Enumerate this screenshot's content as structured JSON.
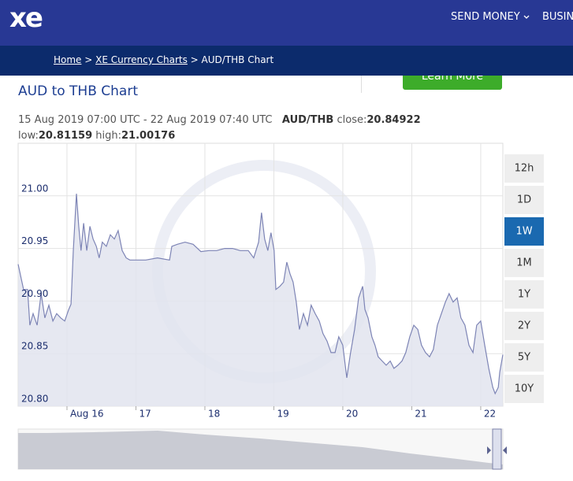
{
  "header": {
    "logo": "xe",
    "nav": [
      "SEND MONEY",
      "BUSIN"
    ]
  },
  "breadcrumb": [
    "Home",
    "XE Currency Charts",
    "AUD/THB Chart"
  ],
  "button": "Learn More",
  "periods": [
    "12h",
    "1D",
    "1W",
    "1M",
    "1Y",
    "2Y",
    "5Y",
    "10Y"
  ],
  "active_period": 2,
  "chart_data": {
    "type": "line",
    "title": "AUD to THB Chart",
    "range": "15 Aug 2019 07:00 UTC - 22 Aug 2019 07:40 UTC",
    "pair": "AUD/THB",
    "stats": [
      {
        "label": "close:",
        "value": 20.84922
      },
      {
        "label": "low:",
        "value": 20.81159
      },
      {
        "label": "high:",
        "value": 21.00176
      }
    ],
    "color": "#7d84b5",
    "fill": "#e2e4ef",
    "grid": true,
    "xlim": [
      0,
      168.7
    ],
    "xticks": [
      {
        "value": 17,
        "label": "Aug 16"
      },
      {
        "value": 41,
        "label": "17"
      },
      {
        "value": 65,
        "label": "18"
      },
      {
        "value": 89,
        "label": "19"
      },
      {
        "value": 113,
        "label": "20"
      },
      {
        "value": 137,
        "label": "21"
      },
      {
        "value": 161,
        "label": "22"
      }
    ],
    "ylim": [
      20.8,
      21.05
    ],
    "yticks": [
      {
        "value": 20.8,
        "label": "20.80"
      },
      20.85,
      {
        "value": 20.9,
        "label": "20.90"
      },
      20.95,
      {
        "value": 21,
        "label": "21.00"
      }
    ],
    "x": [
      0,
      1.9,
      3.3,
      4.1,
      5.2,
      6.6,
      8.0,
      9.3,
      10.7,
      12.1,
      13.4,
      14.8,
      16.2,
      17.6,
      18.4,
      19.2,
      20.3,
      21.1,
      21.9,
      22.8,
      23.9,
      25.0,
      26.1,
      27.2,
      28.2,
      29.3,
      30.7,
      32.1,
      33.5,
      34.8,
      36.2,
      37.6,
      38.9,
      41.7,
      44.4,
      48.5,
      52.7,
      53.5,
      55.4,
      58.1,
      60.9,
      63.6,
      66.4,
      69.1,
      71.9,
      74.6,
      77.3,
      80.1,
      82.0,
      83.7,
      84.7,
      85.8,
      86.9,
      88.0,
      89.1,
      89.7,
      91.1,
      92.4,
      93.5,
      94.6,
      95.7,
      96.8,
      97.9,
      99.3,
      100.7,
      102.0,
      103.4,
      104.8,
      106.1,
      107.5,
      108.9,
      110.3,
      111.6,
      113.0,
      114.4,
      115.7,
      117.1,
      118.5,
      119.9,
      120.7,
      121.8,
      123.1,
      124.2,
      125.3,
      126.7,
      128.1,
      129.5,
      130.8,
      132.2,
      133.6,
      134.9,
      136.3,
      137.7,
      139.1,
      140.4,
      141.8,
      143.2,
      144.5,
      145.9,
      147.3,
      148.7,
      150.0,
      151.4,
      152.8,
      154.1,
      155.5,
      156.9,
      158.3,
      159.6,
      161.0,
      162.4,
      163.8,
      165.2,
      166.0,
      167.1,
      167.6,
      168.7
    ],
    "values": [
      20.935,
      20.911,
      20.911,
      20.877,
      20.888,
      20.877,
      20.907,
      20.884,
      20.896,
      20.881,
      20.888,
      20.884,
      20.881,
      20.892,
      20.897,
      20.948,
      21.002,
      20.971,
      20.948,
      20.974,
      20.948,
      20.971,
      20.959,
      20.952,
      20.941,
      20.956,
      20.952,
      20.963,
      20.959,
      20.967,
      20.948,
      20.941,
      20.939,
      20.939,
      20.939,
      20.941,
      20.939,
      20.952,
      20.954,
      20.956,
      20.954,
      20.947,
      20.948,
      20.948,
      20.95,
      20.95,
      20.948,
      20.948,
      20.941,
      20.956,
      20.984,
      20.959,
      20.948,
      20.965,
      20.948,
      20.911,
      20.914,
      20.918,
      20.937,
      20.926,
      20.918,
      20.899,
      20.873,
      20.888,
      20.877,
      20.896,
      20.888,
      20.881,
      20.869,
      20.862,
      20.851,
      20.851,
      20.866,
      20.858,
      20.827,
      20.851,
      20.873,
      20.903,
      20.914,
      20.892,
      20.884,
      20.866,
      20.858,
      20.847,
      20.843,
      20.839,
      20.843,
      20.836,
      20.839,
      20.843,
      20.851,
      20.866,
      20.877,
      20.873,
      20.858,
      20.851,
      20.847,
      20.854,
      20.877,
      20.888,
      20.899,
      20.907,
      20.899,
      20.903,
      20.884,
      20.877,
      20.858,
      20.851,
      20.877,
      20.881,
      20.858,
      20.836,
      20.818,
      20.812,
      20.818,
      20.832,
      20.849
    ]
  }
}
